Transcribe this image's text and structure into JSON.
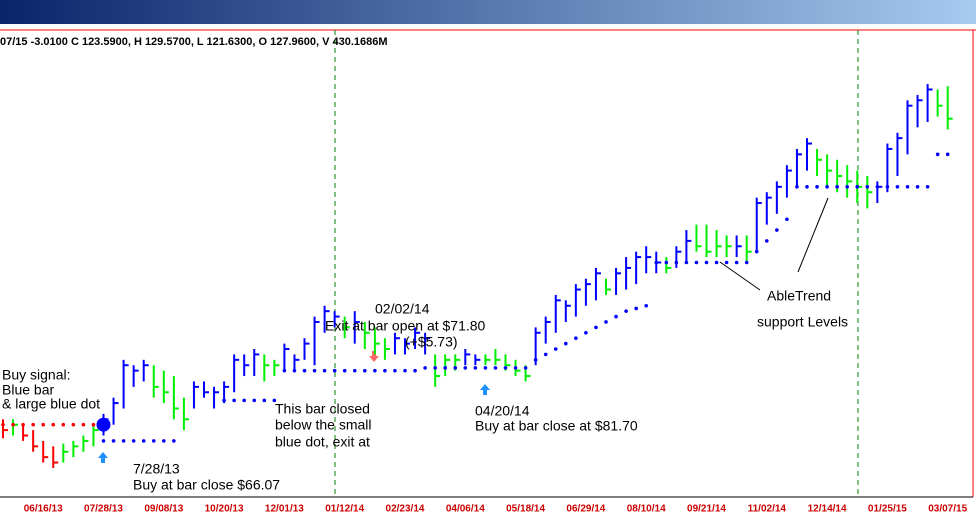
{
  "chart_data": {
    "type": "ohlc",
    "info": "07/15  -3.0100 C 123.5900, H 129.5700, L 121.6300, O 127.9600, V 430.1686M",
    "categories": [
      null,
      null,
      null,
      null,
      "06/16/13",
      null,
      null,
      null,
      null,
      null,
      "07/28/13",
      null,
      null,
      null,
      null,
      null,
      "09/08/13",
      null,
      null,
      null,
      null,
      null,
      "10/20/13",
      null,
      null,
      null,
      null,
      null,
      "12/01/13",
      null,
      null,
      null,
      null,
      null,
      "01/12/14",
      null,
      null,
      null,
      null,
      null,
      "02/23/14",
      null,
      null,
      null,
      null,
      null,
      "04/06/14",
      null,
      null,
      null,
      null,
      null,
      "05/18/14",
      null,
      null,
      null,
      null,
      null,
      "06/29/14",
      null,
      null,
      null,
      null,
      null,
      "08/10/14",
      null,
      null,
      null,
      null,
      null,
      "09/21/14",
      null,
      null,
      null,
      null,
      null,
      "11/02/14",
      null,
      null,
      null,
      null,
      null,
      "12/14/14",
      null,
      null,
      null,
      null,
      null,
      "01/25/15",
      null,
      null,
      null,
      null,
      null,
      "03/07/15"
    ],
    "high": [
      68,
      68,
      67,
      66,
      64,
      63,
      63.5,
      64,
      65,
      67,
      69,
      72,
      79,
      78,
      79,
      78,
      77,
      76,
      72,
      75,
      75,
      74,
      75,
      80,
      80,
      81,
      80,
      79,
      82,
      80,
      83,
      87,
      89,
      88,
      87,
      88,
      86,
      85,
      83,
      84,
      83,
      85,
      84,
      80,
      80,
      80,
      81,
      80,
      80,
      81,
      80,
      79,
      78,
      85,
      87,
      91,
      90,
      93,
      94,
      96,
      94,
      96,
      98,
      99,
      100,
      99,
      98,
      100,
      103,
      104,
      104,
      103,
      102,
      102,
      102,
      109,
      110,
      112,
      115,
      118,
      120,
      118,
      117,
      116,
      115,
      114,
      113,
      112,
      119,
      121,
      127,
      128,
      130,
      129,
      129.6
    ],
    "low": [
      64.5,
      65,
      64,
      62,
      60,
      59,
      60,
      61,
      62,
      63,
      65,
      67,
      70,
      74,
      75,
      72,
      71,
      68,
      66,
      70,
      72,
      70,
      71,
      73,
      76,
      76,
      75,
      76,
      77,
      77,
      79,
      78,
      84,
      85,
      83,
      82,
      81,
      80,
      79,
      80,
      80,
      81,
      80,
      74,
      76,
      77,
      78,
      78,
      78,
      78,
      77,
      76,
      75,
      78,
      82,
      84,
      86,
      87,
      89,
      90,
      91,
      91,
      92,
      93,
      95,
      95,
      95,
      96,
      97,
      99,
      98,
      98,
      98,
      98,
      97,
      99,
      104,
      106,
      109,
      111,
      114,
      113,
      111,
      110,
      109,
      108,
      107,
      108,
      110,
      113,
      117,
      122,
      123,
      124,
      121.6
    ],
    "close": [
      66,
      67,
      65,
      63,
      61,
      60,
      62,
      63,
      64,
      66,
      68,
      71,
      78,
      77,
      78,
      74,
      73,
      70,
      68,
      74,
      73,
      73,
      74,
      79,
      78,
      80,
      78,
      78,
      81,
      79,
      82,
      86,
      88,
      87,
      85,
      86,
      84,
      82,
      81,
      83,
      82,
      84,
      83,
      76,
      79,
      79,
      80,
      79,
      79,
      79,
      78,
      77,
      76,
      84,
      86,
      90,
      89,
      92,
      93,
      95,
      92,
      95,
      96,
      98,
      98,
      97,
      96,
      99,
      101,
      100,
      99,
      100,
      100,
      100,
      99,
      108,
      109,
      111,
      114,
      117,
      119,
      116,
      114,
      113,
      112,
      111,
      110,
      111,
      118,
      120,
      126,
      127,
      129,
      126,
      123.6
    ],
    "bar_colors": [
      "#ff0000",
      "#00ee00",
      "#ff0000",
      "#ff0000",
      "#ff0000",
      "#ff0000",
      "#00ee00",
      "#00ee00",
      "#00ee00",
      "#00ee00",
      "#0000ff",
      "#0000ff",
      "#0000ff",
      "#0000ff",
      "#0000ff",
      "#00ee00",
      "#00ee00",
      "#00ee00",
      "#00ee00",
      "#0000ff",
      "#0000ff",
      "#0000ff",
      "#0000ff",
      "#0000ff",
      "#0000ff",
      "#0000ff",
      "#00ee00",
      "#00ee00",
      "#0000ff",
      "#0000ff",
      "#0000ff",
      "#0000ff",
      "#0000ff",
      "#0000ff",
      "#00ee00",
      "#0000ff",
      "#00ee00",
      "#00ee00",
      "#00ee00",
      "#0000ff",
      "#0000ff",
      "#0000ff",
      "#0000ff",
      "#00ee00",
      "#00ee00",
      "#00ee00",
      "#0000ff",
      "#0000ff",
      "#00ee00",
      "#00ee00",
      "#00ee00",
      "#00ee00",
      "#00ee00",
      "#0000ff",
      "#0000ff",
      "#0000ff",
      "#0000ff",
      "#0000ff",
      "#0000ff",
      "#0000ff",
      "#00ee00",
      "#0000ff",
      "#0000ff",
      "#0000ff",
      "#0000ff",
      "#0000ff",
      "#00ee00",
      "#0000ff",
      "#0000ff",
      "#00ee00",
      "#00ee00",
      "#00ee00",
      "#00ee00",
      "#0000ff",
      "#00ee00",
      "#0000ff",
      "#0000ff",
      "#0000ff",
      "#0000ff",
      "#0000ff",
      "#0000ff",
      "#00ee00",
      "#00ee00",
      "#00ee00",
      "#00ee00",
      "#00ee00",
      "#00ee00",
      "#0000ff",
      "#0000ff",
      "#0000ff",
      "#0000ff",
      "#0000ff",
      "#0000ff",
      "#00ee00",
      "#00ee00"
    ],
    "support_lines": [
      {
        "color": "#ff0000",
        "values": [
          67,
          67,
          67,
          67,
          67,
          67,
          67,
          67,
          67,
          67,
          null,
          null,
          null,
          null,
          null,
          null,
          null,
          null,
          null,
          null,
          null,
          null,
          null,
          null,
          null,
          null,
          null,
          null,
          null,
          null,
          null,
          null,
          null,
          null,
          null,
          null,
          null,
          null,
          null,
          null,
          null,
          null,
          null,
          null,
          null,
          null,
          null,
          null,
          null,
          null,
          null,
          null,
          null,
          null,
          null,
          null,
          null,
          null,
          null,
          null,
          null,
          null,
          null,
          null,
          null,
          null,
          null,
          null,
          null,
          null,
          null,
          null,
          null,
          null,
          null,
          null,
          null,
          null,
          null,
          null,
          null,
          null,
          null,
          null,
          null,
          null,
          null,
          null,
          null,
          null,
          null,
          null,
          null,
          null,
          null
        ]
      },
      {
        "color": "#0000ff",
        "values": [
          null,
          null,
          null,
          null,
          null,
          null,
          null,
          null,
          null,
          null,
          64,
          64,
          64,
          64,
          64,
          64,
          64,
          64,
          null,
          null,
          null,
          null,
          71.5,
          71.5,
          71.5,
          71.5,
          71.5,
          71.5,
          77,
          77,
          77,
          77,
          77,
          77,
          77,
          77,
          77,
          77,
          77,
          77,
          77,
          77,
          77.5,
          77.5,
          77.5,
          77.5,
          77.5,
          77.5,
          77.5,
          77.5,
          77.5,
          77.5,
          77.5,
          79,
          80,
          81,
          82,
          83,
          84,
          85,
          86,
          87,
          88,
          88.5,
          89,
          97,
          97,
          97,
          97,
          97,
          97,
          97,
          97,
          97,
          97,
          99,
          101,
          103,
          105,
          111,
          111,
          111,
          111,
          111,
          111,
          111,
          111,
          111,
          111,
          111,
          111,
          111,
          111,
          117,
          117
        ]
      }
    ],
    "signal_dot": {
      "index": 10,
      "value": 67,
      "color": "#0000ff"
    },
    "ylim": [
      54,
      140
    ],
    "annotations": [
      "Buy signal:",
      "Blue bar",
      "& large blue dot",
      "7/28/13",
      "Buy at bar close $66.07",
      "02/02/14",
      "Exit at bar open at $71.80",
      "(+$5.73)",
      "This bar closed",
      "below the small",
      "blue dot, exit at",
      "04/20/14",
      "Buy at bar close at $81.70",
      "AbleTrend",
      "support Levels"
    ]
  }
}
